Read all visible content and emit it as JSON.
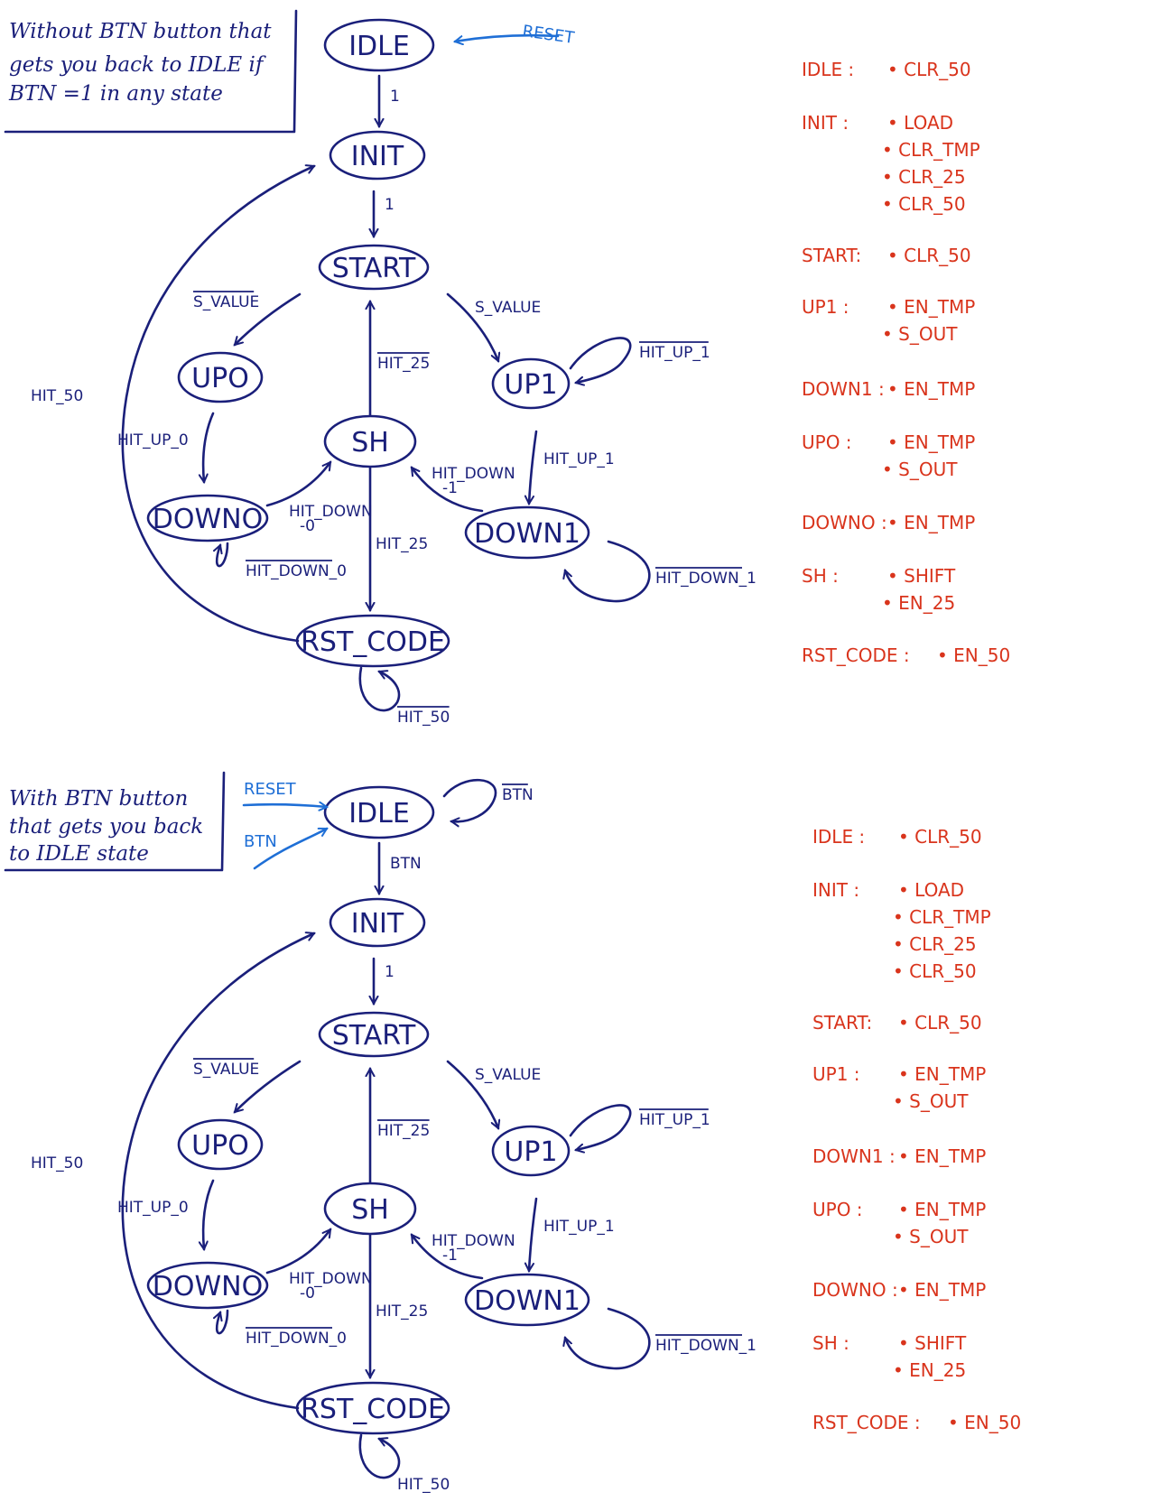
{
  "diagrams": [
    {
      "note": [
        "Without BTN button that",
        "gets you back to IDLE if",
        "BTN =1 in any state"
      ],
      "external": [
        {
          "label": "RESET",
          "negated": false
        }
      ],
      "idle_to_init": {
        "label": "1",
        "negated": false
      },
      "idle_self": null,
      "states": {
        "idle": "IDLE",
        "init": "INIT",
        "start": "START",
        "up0": "UPO",
        "up1": "UP1",
        "sh": "SH",
        "down0": "DOWNO",
        "down1": "DOWN1",
        "rst": "RST_CODE"
      },
      "edges": {
        "init_start": {
          "label": "1",
          "negated": false
        },
        "start_up0": {
          "label": "S_VALUE",
          "negated": true
        },
        "start_up1": {
          "label": "S_VALUE",
          "negated": false
        },
        "up1_self": {
          "label": "HIT_UP_1",
          "negated": true
        },
        "up0_down0": {
          "label": "HIT_UP_0",
          "negated": false
        },
        "up1_down1": {
          "label": "HIT_UP_1",
          "negated": false
        },
        "sh_start": {
          "label": "HIT_25",
          "negated": true
        },
        "down1_sh": {
          "label": "HIT_DOWN -1",
          "negated": false
        },
        "down0_sh": {
          "label": "HIT_DOWN -0",
          "negated": false
        },
        "down0_self": {
          "label": "HIT_DOWN_0",
          "negated": true
        },
        "sh_rst": {
          "label": "HIT_25",
          "negated": false
        },
        "down1_self": {
          "label": "HIT_DOWN_1",
          "negated": true
        },
        "rst_init": {
          "label": "HIT_50",
          "negated": false
        },
        "rst_self": {
          "label": "HIT_50",
          "negated": true
        }
      },
      "outputs": [
        {
          "state": "IDLE :",
          "items": [
            "• CLR_50"
          ]
        },
        {
          "state": "INIT :",
          "items": [
            "• LOAD",
            "• CLR_TMP",
            "• CLR_25",
            "• CLR_50"
          ]
        },
        {
          "state": "START:",
          "items": [
            "• CLR_50"
          ]
        },
        {
          "state": "UP1 :",
          "items": [
            "• EN_TMP",
            "• S_OUT"
          ]
        },
        {
          "state": "DOWN1 :",
          "items": [
            "• EN_TMP"
          ]
        },
        {
          "state": "UPO :",
          "items": [
            "• EN_TMP",
            "• S_OUT"
          ]
        },
        {
          "state": "DOWNO :",
          "items": [
            "• EN_TMP"
          ]
        },
        {
          "state": "SH :",
          "items": [
            "• SHIFT",
            "• EN_25"
          ]
        },
        {
          "state": "RST_CODE :",
          "items": [
            "• EN_50"
          ]
        }
      ]
    },
    {
      "note": [
        "With BTN button",
        "that gets you back",
        "to IDLE state"
      ],
      "external": [
        {
          "label": "RESET",
          "negated": false
        },
        {
          "label": "BTN",
          "negated": false
        }
      ],
      "idle_to_init": {
        "label": "BTN",
        "negated": false
      },
      "idle_self": {
        "label": "BTN",
        "negated": true
      },
      "states": {
        "idle": "IDLE",
        "init": "INIT",
        "start": "START",
        "up0": "UPO",
        "up1": "UP1",
        "sh": "SH",
        "down0": "DOWNO",
        "down1": "DOWN1",
        "rst": "RST_CODE"
      },
      "edges": {
        "init_start": {
          "label": "1",
          "negated": false
        },
        "start_up0": {
          "label": "S_VALUE",
          "negated": true
        },
        "start_up1": {
          "label": "S_VALUE",
          "negated": false
        },
        "up1_self": {
          "label": "HIT_UP_1",
          "negated": true
        },
        "up0_down0": {
          "label": "HIT_UP_0",
          "negated": false
        },
        "up1_down1": {
          "label": "HIT_UP_1",
          "negated": false
        },
        "sh_start": {
          "label": "HIT_25",
          "negated": true
        },
        "down1_sh": {
          "label": "HIT_DOWN -1",
          "negated": false
        },
        "down0_sh": {
          "label": "HIT_DOWN -0",
          "negated": false
        },
        "down0_self": {
          "label": "HIT_DOWN_0",
          "negated": true
        },
        "sh_rst": {
          "label": "HIT_25",
          "negated": false
        },
        "down1_self": {
          "label": "HIT_DOWN_1",
          "negated": true
        },
        "rst_init": {
          "label": "HIT_50",
          "negated": false
        },
        "rst_self": {
          "label": "HIT_50",
          "negated": false
        }
      },
      "outputs": [
        {
          "state": "IDLE :",
          "items": [
            "• CLR_50"
          ]
        },
        {
          "state": "INIT :",
          "items": [
            "• LOAD",
            "• CLR_TMP",
            "• CLR_25",
            "• CLR_50"
          ]
        },
        {
          "state": "START:",
          "items": [
            "• CLR_50"
          ]
        },
        {
          "state": "UP1 :",
          "items": [
            "• EN_TMP",
            "• S_OUT"
          ]
        },
        {
          "state": "DOWN1 :",
          "items": [
            "• EN_TMP"
          ]
        },
        {
          "state": "UPO :",
          "items": [
            "• EN_TMP",
            "• S_OUT"
          ]
        },
        {
          "state": "DOWNO :",
          "items": [
            "• EN_TMP"
          ]
        },
        {
          "state": "SH :",
          "items": [
            "• SHIFT",
            "• EN_25"
          ]
        },
        {
          "state": "RST_CODE :",
          "items": [
            "• EN_50"
          ]
        }
      ]
    }
  ]
}
